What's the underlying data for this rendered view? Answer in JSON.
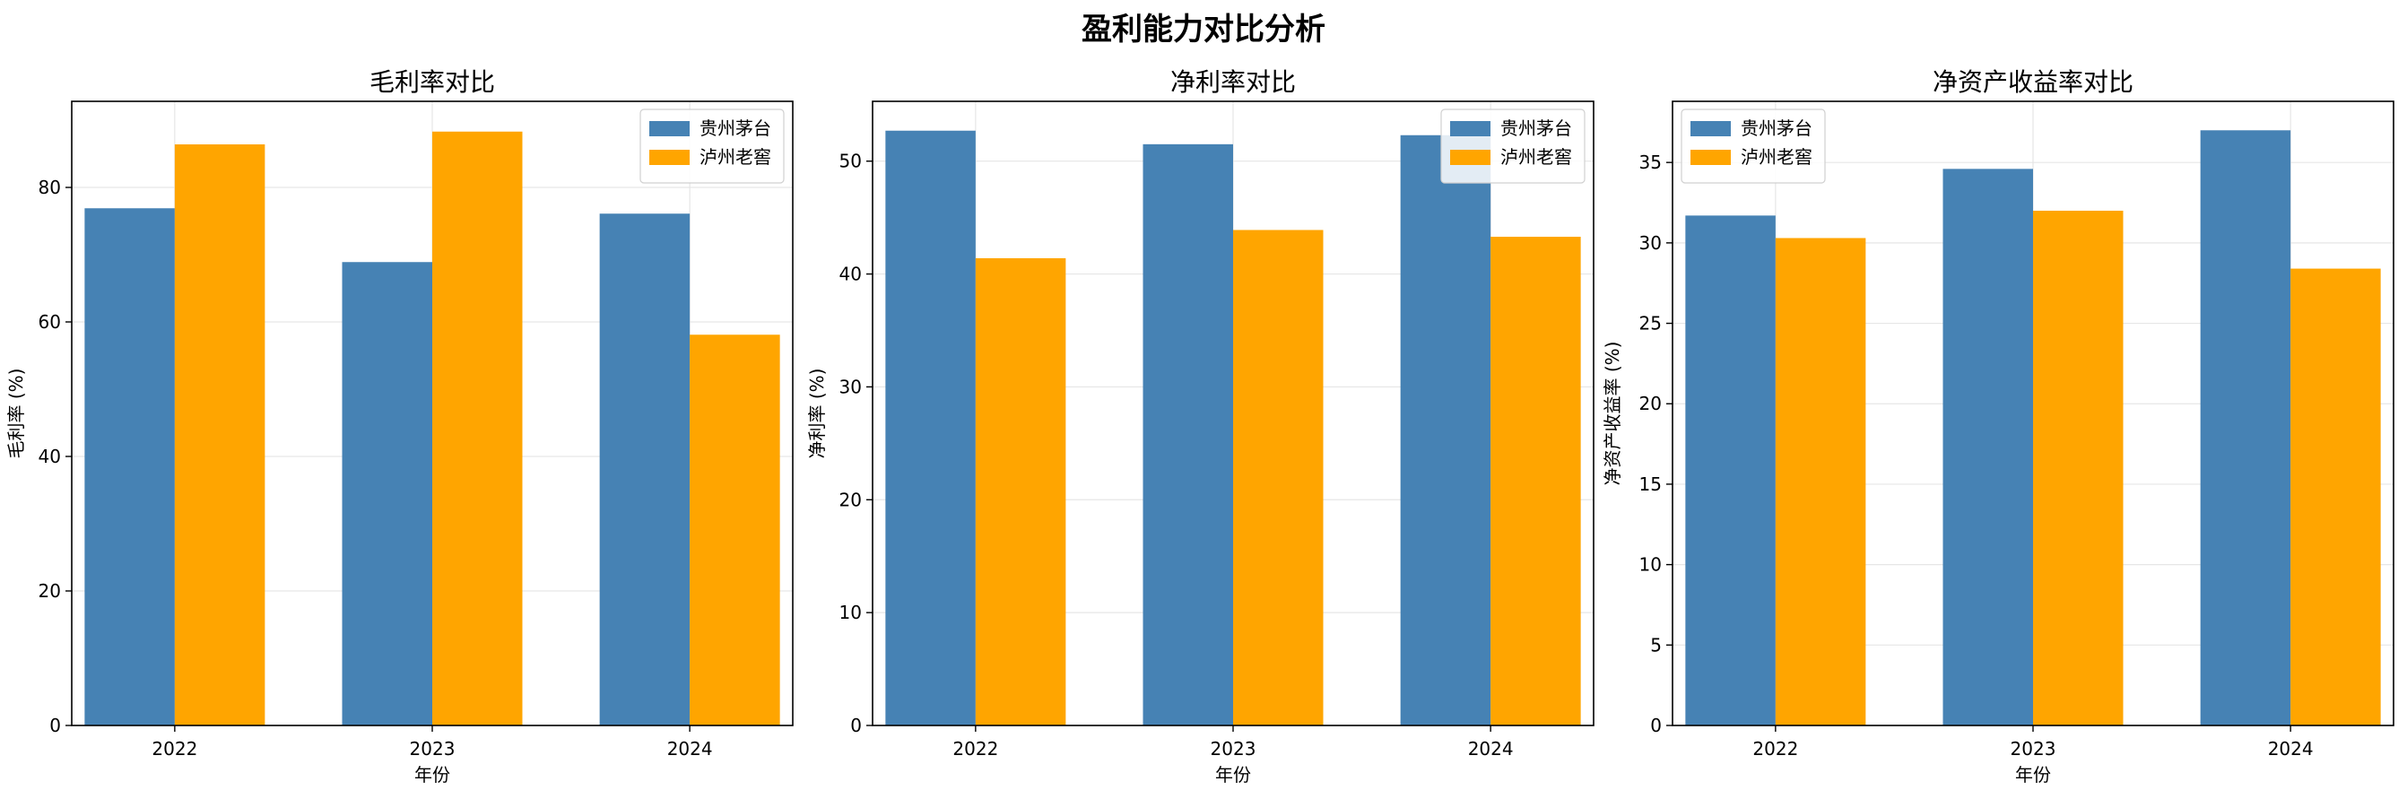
{
  "figure": {
    "title": "盈利能力对比分析"
  },
  "colors": {
    "series_1": "#4682b4",
    "series_2": "#ffa500"
  },
  "chart_data": [
    {
      "type": "bar",
      "title": "毛利率对比",
      "xlabel": "年份",
      "ylabel": "毛利率 (%)",
      "categories": [
        "2022",
        "2023",
        "2024"
      ],
      "series": [
        {
          "name": "贵州茅台",
          "values": [
            76.9,
            68.9,
            76.1
          ]
        },
        {
          "name": "泸州老窖",
          "values": [
            86.4,
            88.3,
            58.1
          ]
        }
      ],
      "ylim": [
        0,
        92.8
      ],
      "yticks": [
        0,
        20,
        40,
        60,
        80
      ],
      "grid": true,
      "legend": "top-right"
    },
    {
      "type": "bar",
      "title": "净利率对比",
      "xlabel": "年份",
      "ylabel": "净利率 (%)",
      "categories": [
        "2022",
        "2023",
        "2024"
      ],
      "series": [
        {
          "name": "贵州茅台",
          "values": [
            52.7,
            51.5,
            52.3
          ]
        },
        {
          "name": "泸州老窖",
          "values": [
            41.4,
            43.9,
            43.3
          ]
        }
      ],
      "ylim": [
        0,
        55.3
      ],
      "yticks": [
        0,
        10,
        20,
        30,
        40,
        50
      ],
      "grid": true,
      "legend": "top-right"
    },
    {
      "type": "bar",
      "title": "净资产收益率对比",
      "xlabel": "年份",
      "ylabel": "净资产收益率 (%)",
      "categories": [
        "2022",
        "2023",
        "2024"
      ],
      "series": [
        {
          "name": "贵州茅台",
          "values": [
            31.7,
            34.6,
            37.0
          ]
        },
        {
          "name": "泸州老窖",
          "values": [
            30.3,
            32.0,
            28.4
          ]
        }
      ],
      "ylim": [
        0,
        38.8
      ],
      "yticks": [
        0,
        5,
        10,
        15,
        20,
        25,
        30,
        35
      ],
      "grid": true,
      "legend": "top-left"
    }
  ]
}
